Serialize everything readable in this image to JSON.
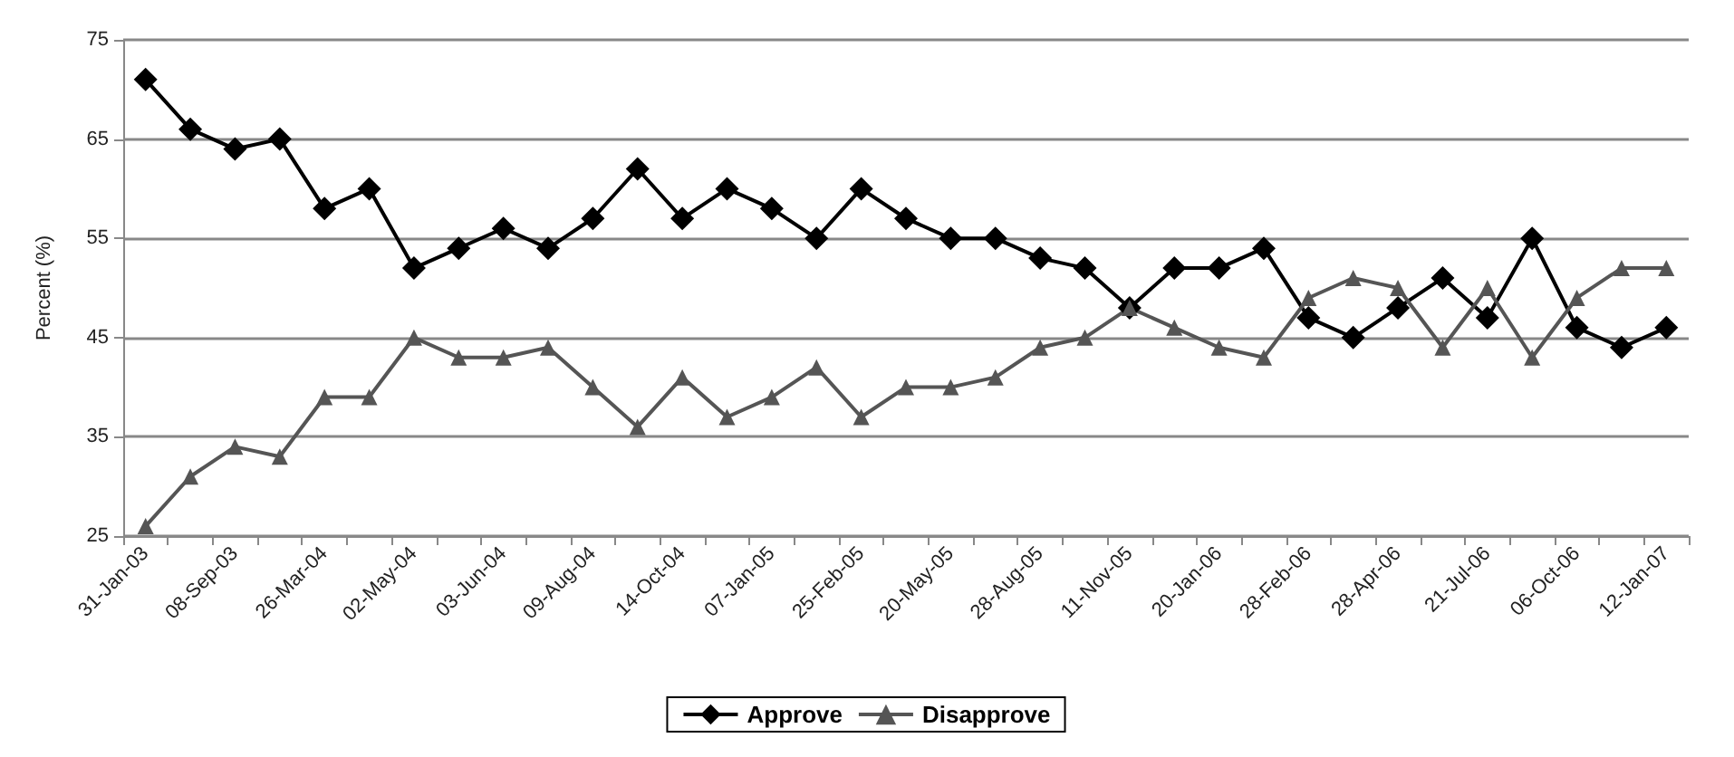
{
  "chart_data": {
    "type": "line",
    "ylabel": "Percent (%)",
    "categories": [
      "31-Jan-03",
      null,
      "08-Sep-03",
      null,
      "26-Mar-04",
      null,
      "02-May-04",
      null,
      "03-Jun-04",
      null,
      "09-Aug-04",
      null,
      "14-Oct-04",
      null,
      "07-Jan-05",
      null,
      "25-Feb-05",
      null,
      "20-May-05",
      null,
      "28-Aug-05",
      null,
      "11-Nov-05",
      null,
      "20-Jan-06",
      null,
      "28-Feb-06",
      null,
      "28-Apr-06",
      null,
      "21-Jul-06",
      null,
      "06-Oct-06",
      null,
      "12-Jan-07"
    ],
    "series": [
      {
        "name": "Approve",
        "color": "#000000",
        "marker": "diamond",
        "values": [
          71,
          66,
          64,
          65,
          58,
          60,
          52,
          54,
          56,
          54,
          57,
          62,
          57,
          60,
          58,
          55,
          60,
          57,
          55,
          55,
          53,
          52,
          48,
          52,
          52,
          54,
          47,
          45,
          48,
          51,
          47,
          55,
          46,
          44,
          46
        ]
      },
      {
        "name": "Disapprove",
        "color": "#555555",
        "marker": "triangle",
        "values": [
          26,
          31,
          34,
          33,
          39,
          39,
          45,
          43,
          43,
          44,
          40,
          36,
          41,
          37,
          39,
          42,
          37,
          40,
          40,
          41,
          44,
          45,
          48,
          46,
          44,
          43,
          49,
          51,
          50,
          44,
          50,
          43,
          49,
          52,
          52
        ]
      }
    ],
    "ylim": [
      25,
      75
    ],
    "yticks": [
      25,
      35,
      45,
      55,
      65,
      75
    ],
    "grid": "y",
    "legend": "bottom",
    "line_style": "solid"
  }
}
